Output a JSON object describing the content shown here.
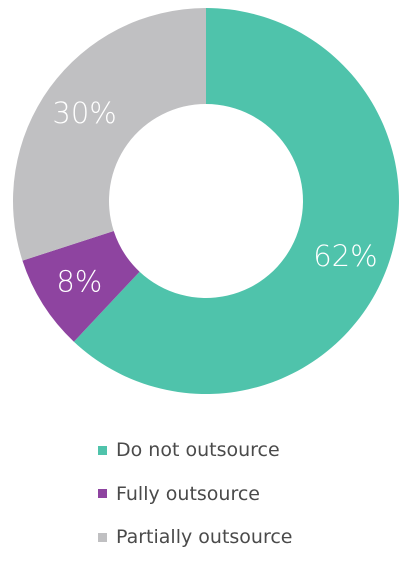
{
  "chart_data": {
    "type": "pie",
    "donut": true,
    "categories": [
      "Do not outsource",
      "Fully outsource",
      "Partially outsource"
    ],
    "values": [
      62,
      8,
      30
    ],
    "labels": [
      "62%",
      "8%",
      "30%"
    ],
    "colors": [
      "#4fc3ab",
      "#8e44a0",
      "#c0c0c2"
    ],
    "legend_position": "bottom",
    "title": ""
  }
}
